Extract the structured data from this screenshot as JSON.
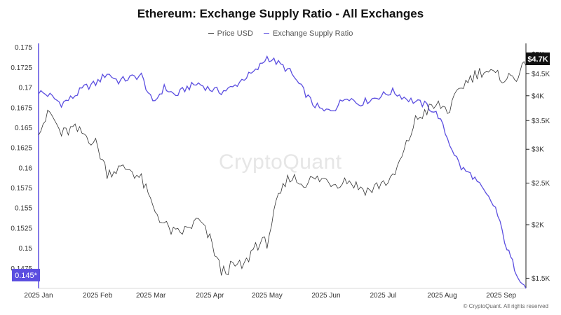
{
  "title": "Ethereum: Exchange Supply Ratio - All Exchanges",
  "legend": [
    {
      "label": "Price USD",
      "color": "#333333"
    },
    {
      "label": "Exchange Supply Ratio",
      "color": "#5b4ee0"
    }
  ],
  "watermark": "CryptoQuant",
  "copyright": "© CryptoQuant. All rights reserved",
  "current_ratio_label": "0.145*",
  "current_price_label": "$4.7K",
  "colors": {
    "ratio": "#5b4ee0",
    "price": "#333333",
    "ratio_badge": "#5b4ee0",
    "price_badge": "#111111"
  },
  "chart_data": {
    "type": "line",
    "title": "Ethereum: Exchange Supply Ratio - All Exchanges",
    "x_range": [
      "2025-01-01",
      "2025-09-14"
    ],
    "x_tick_labels": [
      "2025 Jan",
      "2025 Feb",
      "2025 Mar",
      "2025 Apr",
      "2025 May",
      "2025 Jun",
      "2025 Jul",
      "2025 Aug",
      "2025 Sep"
    ],
    "left_axis": {
      "label": "",
      "ticks": [
        "0.175",
        "0.1725",
        "0.17",
        "0.1675",
        "0.165",
        "0.1625",
        "0.16",
        "0.1575",
        "0.155",
        "0.1525",
        "0.15",
        "0.1475"
      ],
      "ylim": [
        0.145,
        0.1755
      ]
    },
    "right_axis": {
      "label": "",
      "scale": "log",
      "ticks": [
        "$5K",
        "$4.5K",
        "$4K",
        "$3.5K",
        "$3K",
        "$2.5K",
        "$2K",
        "$1.5K"
      ]
    },
    "grid": false,
    "legend_position": "top-center",
    "series": [
      {
        "name": "Exchange Supply Ratio",
        "axis": "left",
        "x": [
          "2025-01-01",
          "2025-01-07",
          "2025-01-13",
          "2025-01-19",
          "2025-01-25",
          "2025-01-31",
          "2025-02-06",
          "2025-02-12",
          "2025-02-18",
          "2025-02-24",
          "2025-03-02",
          "2025-03-08",
          "2025-03-14",
          "2025-03-20",
          "2025-03-26",
          "2025-04-01",
          "2025-04-07",
          "2025-04-13",
          "2025-04-19",
          "2025-04-25",
          "2025-05-01",
          "2025-05-07",
          "2025-05-13",
          "2025-05-19",
          "2025-05-25",
          "2025-05-31",
          "2025-06-06",
          "2025-06-12",
          "2025-06-18",
          "2025-06-24",
          "2025-06-30",
          "2025-07-06",
          "2025-07-12",
          "2025-07-18",
          "2025-07-24",
          "2025-07-30",
          "2025-08-05",
          "2025-08-11",
          "2025-08-17",
          "2025-08-23",
          "2025-08-29",
          "2025-09-04",
          "2025-09-09",
          "2025-09-14"
        ],
        "values": [
          0.1695,
          0.169,
          0.168,
          0.1688,
          0.17,
          0.1705,
          0.1718,
          0.1708,
          0.1712,
          0.1715,
          0.168,
          0.17,
          0.169,
          0.17,
          0.1705,
          0.1698,
          0.1695,
          0.17,
          0.1712,
          0.172,
          0.1738,
          0.173,
          0.172,
          0.17,
          0.168,
          0.167,
          0.1675,
          0.169,
          0.168,
          0.1685,
          0.169,
          0.1695,
          0.1688,
          0.1682,
          0.1678,
          0.1665,
          0.163,
          0.16,
          0.159,
          0.157,
          0.155,
          0.15,
          0.147,
          0.145
        ]
      },
      {
        "name": "Price USD",
        "axis": "right",
        "x": [
          "2025-01-01",
          "2025-01-07",
          "2025-01-13",
          "2025-01-19",
          "2025-01-25",
          "2025-01-31",
          "2025-02-06",
          "2025-02-12",
          "2025-02-18",
          "2025-02-24",
          "2025-03-02",
          "2025-03-08",
          "2025-03-14",
          "2025-03-20",
          "2025-03-26",
          "2025-04-01",
          "2025-04-07",
          "2025-04-13",
          "2025-04-19",
          "2025-04-25",
          "2025-05-01",
          "2025-05-07",
          "2025-05-13",
          "2025-05-19",
          "2025-05-25",
          "2025-05-31",
          "2025-06-06",
          "2025-06-12",
          "2025-06-18",
          "2025-06-24",
          "2025-06-30",
          "2025-07-06",
          "2025-07-12",
          "2025-07-18",
          "2025-07-24",
          "2025-07-30",
          "2025-08-05",
          "2025-08-11",
          "2025-08-17",
          "2025-08-23",
          "2025-08-29",
          "2025-09-04",
          "2025-09-09",
          "2025-09-14"
        ],
        "values": [
          3350,
          3650,
          3250,
          3350,
          3250,
          3100,
          2650,
          2700,
          2700,
          2550,
          2200,
          2000,
          1900,
          1950,
          2050,
          1850,
          1550,
          1600,
          1600,
          1800,
          1820,
          2300,
          2600,
          2500,
          2550,
          2550,
          2500,
          2550,
          2450,
          2400,
          2500,
          2550,
          2950,
          3500,
          3700,
          3800,
          3700,
          4200,
          4450,
          4600,
          4450,
          4400,
          4450,
          4700
        ]
      }
    ]
  }
}
